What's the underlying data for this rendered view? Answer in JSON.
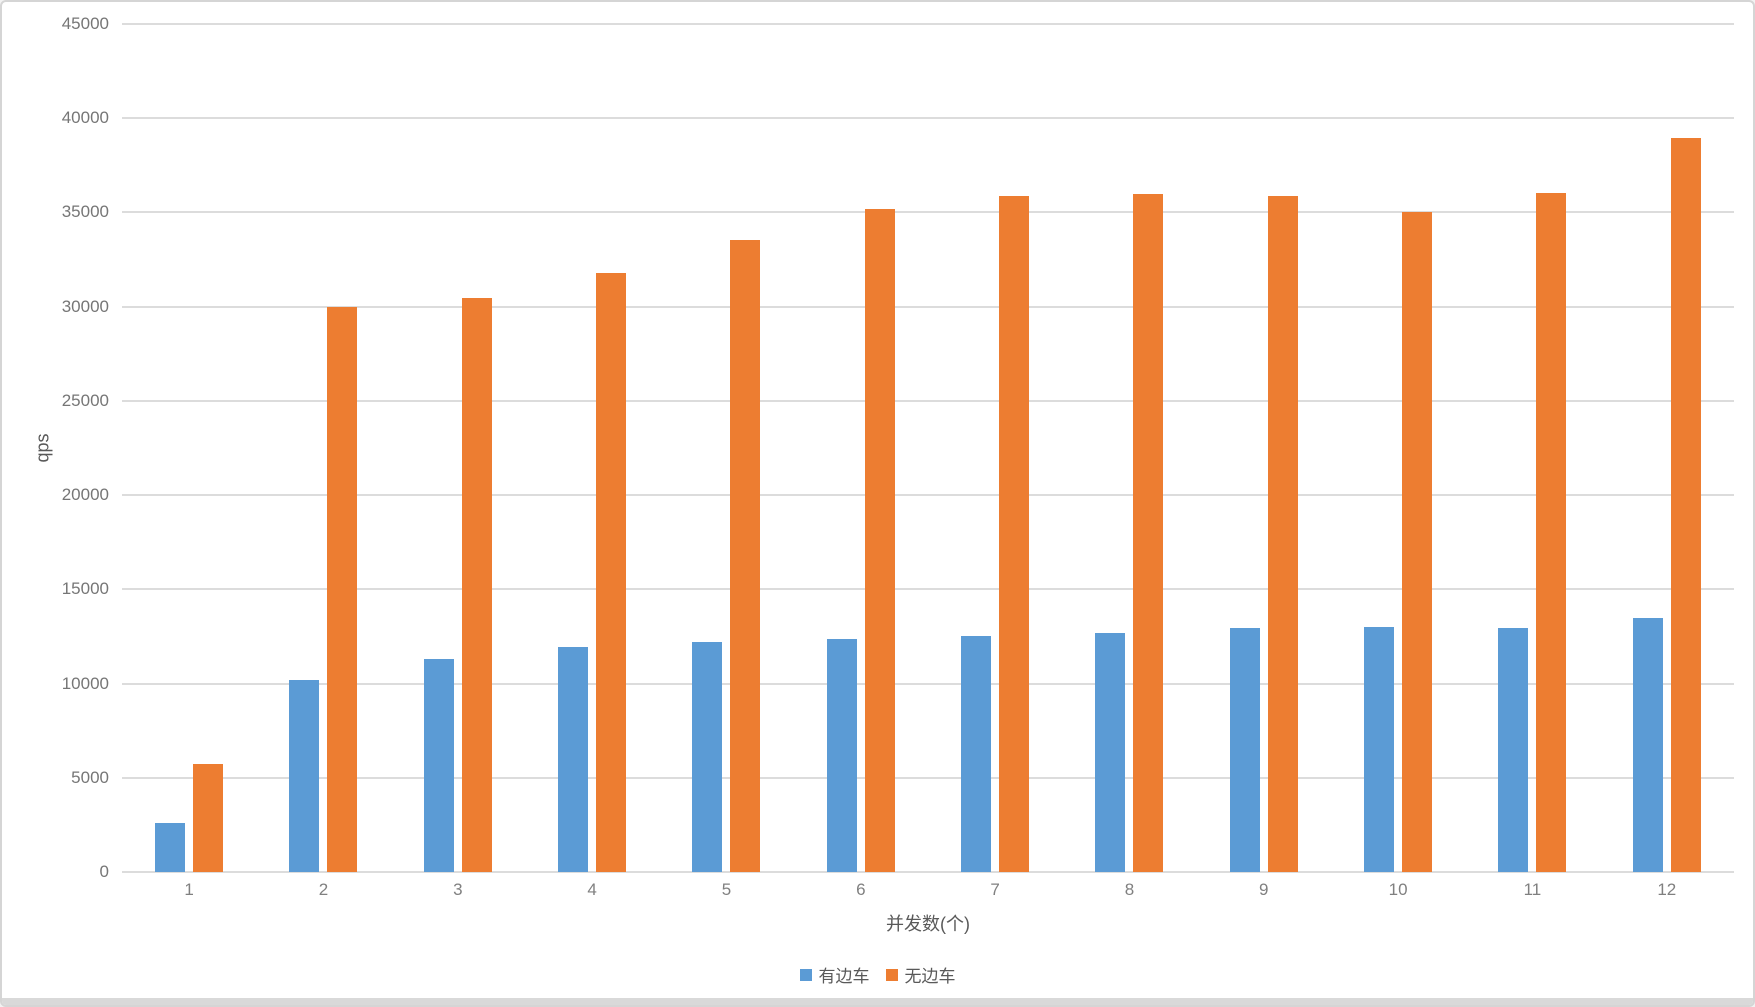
{
  "chart_data": {
    "type": "bar",
    "title": "",
    "xlabel": "并发数(个)",
    "ylabel": "qps",
    "categories": [
      "1",
      "2",
      "3",
      "4",
      "5",
      "6",
      "7",
      "8",
      "9",
      "10",
      "11",
      "12"
    ],
    "series": [
      {
        "name": "有边车",
        "color": "#5B9BD5",
        "values": [
          2600,
          10200,
          11300,
          11950,
          12200,
          12350,
          12550,
          12700,
          12950,
          13000,
          12950,
          13500
        ]
      },
      {
        "name": "无边车",
        "color": "#ED7D31",
        "values": [
          5750,
          30000,
          30450,
          31800,
          33550,
          35200,
          35850,
          36000,
          35850,
          35000,
          36050,
          38950
        ]
      }
    ],
    "ylim": [
      0,
      45000
    ],
    "ytick_step": 5000,
    "grid": true,
    "legend_position": "bottom",
    "colors": {
      "gridline": "#dcdcdc",
      "axis_text": "#808080",
      "title_text": "#595959"
    }
  }
}
